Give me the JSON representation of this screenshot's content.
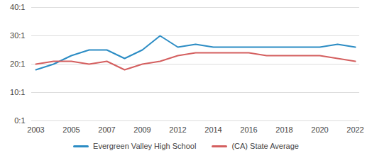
{
  "chart_data": {
    "type": "line",
    "categories": [
      "2003",
      null,
      "2005",
      null,
      "2007",
      null,
      "2009",
      null,
      "2012",
      null,
      "2014",
      null,
      "2016",
      null,
      "2018",
      null,
      "2020",
      null,
      "2022"
    ],
    "series": [
      {
        "name": "Evergreen Valley High School",
        "color": "#2b8cc4",
        "values": [
          18,
          20,
          23,
          25,
          25,
          22,
          25,
          30,
          26,
          27,
          26,
          26,
          26,
          26,
          26,
          26,
          26,
          27,
          26
        ]
      },
      {
        "name": "(CA) State Average",
        "color": "#d45f5f",
        "values": [
          20,
          21,
          21,
          20,
          21,
          18,
          20,
          21,
          23,
          24,
          24,
          24,
          24,
          23,
          23,
          23,
          23,
          22,
          21
        ]
      }
    ],
    "ylim": [
      0,
      40
    ],
    "yticks": [
      {
        "value": 0,
        "label": "0:1"
      },
      {
        "value": 10,
        "label": "10:1"
      },
      {
        "value": 20,
        "label": "20:1"
      },
      {
        "value": 30,
        "label": "30:1"
      },
      {
        "value": 40,
        "label": "40:1"
      }
    ],
    "grid": true,
    "legend": "bottom"
  }
}
